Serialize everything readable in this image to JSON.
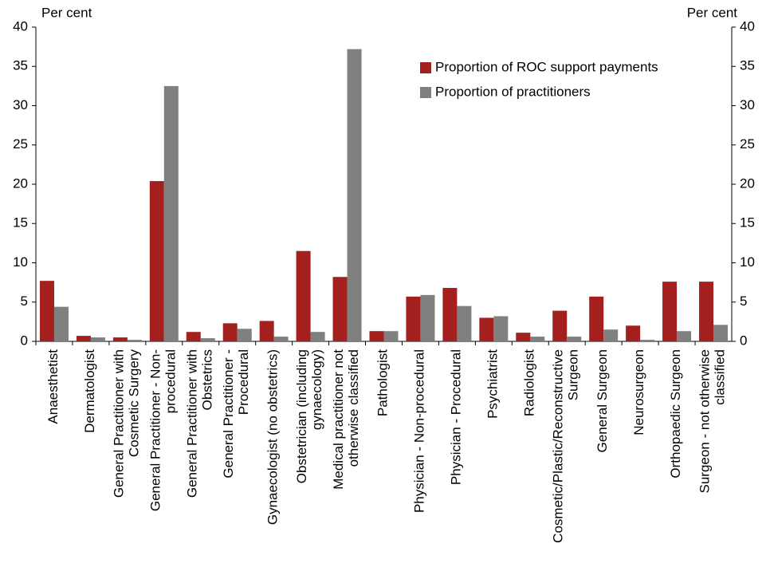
{
  "chart_data": {
    "type": "bar",
    "y_label": "Per cent",
    "y2_label": "Per cent",
    "categories": [
      "Anaesthetist",
      "Dermatologist",
      "General Practitioner with\nCosmetic Surgery",
      "General Practitioner - Non-\nprocedural",
      "General Practitioner with\nObstetrics",
      "General Practitioner -\nProcedural",
      "Gynaecologist (no obstetrics)",
      "Obstetrician (including\ngynaecology)",
      "Medical practitioner not\notherwise classified",
      "Pathologist",
      "Physician - Non-procedural",
      "Physician - Procedural",
      "Psychiatrist",
      "Radiologist",
      "Cosmetic/Plastic/Reconstructive\nSurgeon",
      "General Surgeon",
      "Neurosurgeon",
      "Orthopaedic Surgeon",
      "Surgeon - not otherwise\nclassified"
    ],
    "series": [
      {
        "name": "Proportion of ROC support payments",
        "color": "#a3201f",
        "values": [
          7.7,
          0.7,
          0.5,
          20.4,
          1.2,
          2.3,
          2.6,
          11.5,
          8.2,
          1.3,
          5.7,
          6.8,
          3.0,
          1.1,
          3.9,
          5.7,
          2.0,
          7.6,
          7.6
        ]
      },
      {
        "name": "Proportion of practitioners",
        "color": "#808080",
        "values": [
          4.4,
          0.5,
          0.2,
          32.5,
          0.4,
          1.6,
          0.6,
          1.2,
          37.2,
          1.3,
          5.9,
          4.5,
          3.2,
          0.6,
          0.6,
          1.5,
          0.2,
          1.3,
          2.1
        ]
      }
    ],
    "ylim": [
      0,
      40
    ],
    "yticks": [
      0,
      5,
      10,
      15,
      20,
      25,
      30,
      35,
      40
    ],
    "y2lim": [
      0,
      40
    ],
    "y2ticks": [
      0,
      5,
      10,
      15,
      20,
      25,
      30,
      35,
      40
    ],
    "legend": "top-right"
  }
}
